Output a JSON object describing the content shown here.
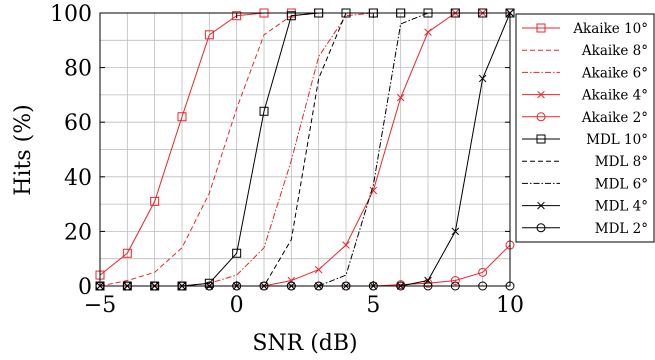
{
  "chart_data": {
    "type": "line",
    "xlabel": "SNR (dB)",
    "ylabel": "Hits (%)",
    "xlim": [
      -5,
      10
    ],
    "ylim": [
      0,
      100
    ],
    "x_ticks": [
      -5,
      0,
      5,
      10
    ],
    "y_ticks": [
      0,
      20,
      40,
      60,
      80,
      100
    ],
    "grid": true,
    "legend_position": "right",
    "x": [
      -5,
      -4,
      -3,
      -2,
      -1,
      0,
      1,
      2,
      3,
      4,
      5,
      6,
      7,
      8,
      9,
      10
    ],
    "series": [
      {
        "name": "Akaike 10°",
        "color": "#e8262b",
        "dash": "solid",
        "marker": "square",
        "values": [
          4,
          12,
          31,
          62,
          92,
          99,
          100,
          100,
          100,
          100,
          100,
          100,
          100,
          100,
          100,
          100
        ]
      },
      {
        "name": "Akaike 8°",
        "color": "#e8262b",
        "dash": "dashed",
        "marker": "none",
        "values": [
          0,
          2,
          5,
          14,
          34,
          65,
          92,
          99,
          100,
          100,
          100,
          100,
          100,
          100,
          100,
          100
        ]
      },
      {
        "name": "Akaike 6°",
        "color": "#e8262b",
        "dash": "dashdot",
        "marker": "none",
        "values": [
          0,
          0,
          0,
          0,
          1,
          4,
          14,
          46,
          84,
          99,
          100,
          100,
          100,
          100,
          100,
          100
        ]
      },
      {
        "name": "Akaike 4°",
        "color": "#e8262b",
        "dash": "solid",
        "marker": "x",
        "values": [
          0,
          0,
          0,
          0,
          0,
          0,
          0,
          2,
          6,
          15,
          35,
          69,
          93,
          100,
          100,
          100
        ]
      },
      {
        "name": "Akaike 2°",
        "color": "#e8262b",
        "dash": "solid",
        "marker": "circle",
        "values": [
          0,
          0,
          0,
          0,
          0,
          0,
          0,
          0,
          0,
          0,
          0,
          0.5,
          1,
          2,
          5,
          15
        ]
      },
      {
        "name": "MDL 10°",
        "color": "#000000",
        "dash": "solid",
        "marker": "square",
        "values": [
          0,
          0,
          0,
          0,
          1,
          12,
          64,
          99,
          100,
          100,
          100,
          100,
          100,
          100,
          100,
          100
        ]
      },
      {
        "name": "MDL 8°",
        "color": "#000000",
        "dash": "dashed",
        "marker": "none",
        "values": [
          0,
          0,
          0,
          0,
          0,
          0,
          0,
          17,
          76,
          100,
          100,
          100,
          100,
          100,
          100,
          100
        ]
      },
      {
        "name": "MDL 6°",
        "color": "#000000",
        "dash": "dashdot",
        "marker": "none",
        "values": [
          0,
          0,
          0,
          0,
          0,
          0,
          0,
          0,
          0,
          4,
          37,
          96,
          100,
          100,
          100,
          100
        ]
      },
      {
        "name": "MDL 4°",
        "color": "#000000",
        "dash": "solid",
        "marker": "x",
        "values": [
          0,
          0,
          0,
          0,
          0,
          0,
          0,
          0,
          0,
          0,
          0,
          0,
          2,
          20,
          76,
          100
        ]
      },
      {
        "name": "MDL 2°",
        "color": "#000000",
        "dash": "solid",
        "marker": "circle",
        "values": [
          0,
          0,
          0,
          0,
          0,
          0,
          0,
          0,
          0,
          0,
          0,
          0,
          0,
          0,
          0,
          0
        ]
      }
    ]
  }
}
